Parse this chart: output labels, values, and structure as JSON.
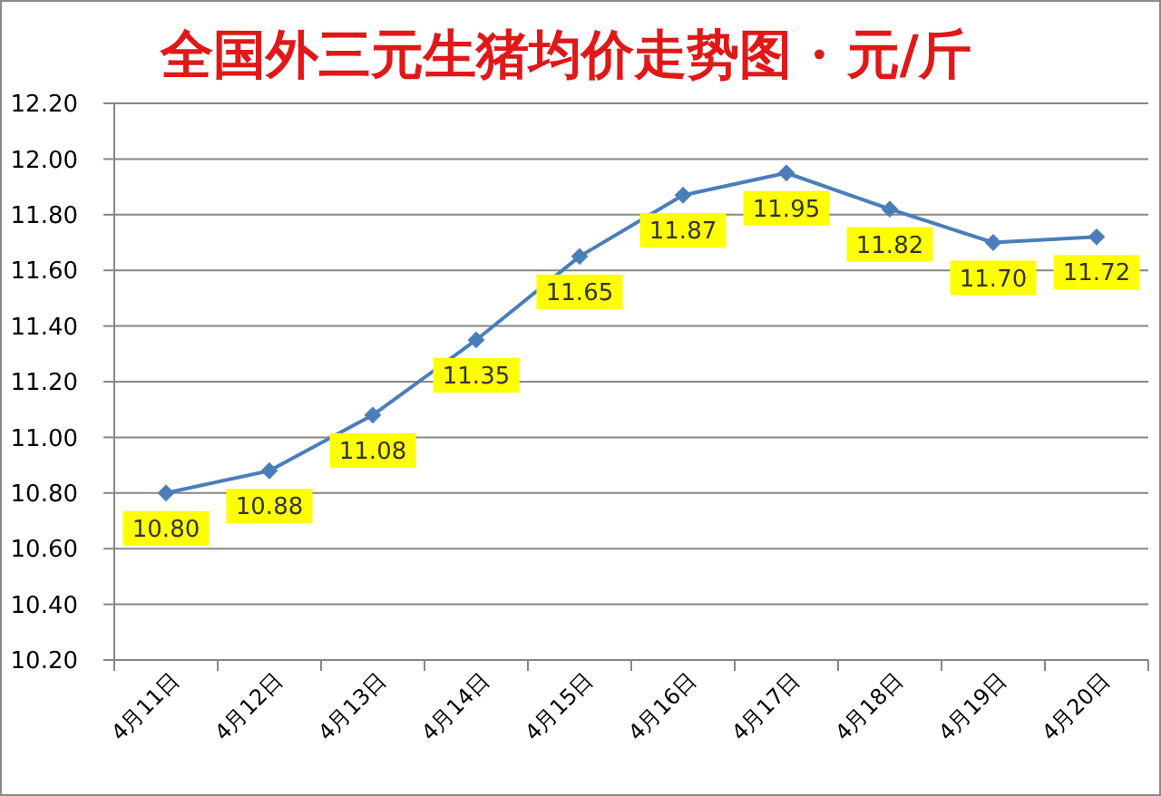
{
  "chart_data": {
    "type": "line",
    "title": "全国外三元生猪均价走势图 · 元/斤",
    "categories": [
      "4月11日",
      "4月12日",
      "4月13日",
      "4月14日",
      "4月15日",
      "4月16日",
      "4月17日",
      "4月18日",
      "4月19日",
      "4月20日"
    ],
    "values": [
      10.8,
      10.88,
      11.08,
      11.35,
      11.65,
      11.87,
      11.95,
      11.82,
      11.7,
      11.72
    ],
    "value_labels": [
      "10.80",
      "10.88",
      "11.08",
      "11.35",
      "11.65",
      "11.87",
      "11.95",
      "11.82",
      "11.70",
      "11.72"
    ],
    "color": "#4a7ebb",
    "ylim": [
      10.2,
      12.2
    ],
    "yticks": [
      {
        "value": 10.2,
        "label": "10.20"
      },
      {
        "value": 10.4,
        "label": "10.40"
      },
      {
        "value": 10.6,
        "label": "10.60"
      },
      {
        "value": 10.8,
        "label": "10.80"
      },
      {
        "value": 11,
        "label": "11.00"
      },
      {
        "value": 11.2,
        "label": "11.20"
      },
      {
        "value": 11.4,
        "label": "11.40"
      },
      {
        "value": 11.6,
        "label": "11.60"
      },
      {
        "value": 11.8,
        "label": "11.80"
      },
      {
        "value": 12,
        "label": "12.00"
      },
      {
        "value": 12.2,
        "label": "12.20"
      }
    ],
    "grid": "y",
    "marker": "diamond",
    "line_style": "solid"
  }
}
